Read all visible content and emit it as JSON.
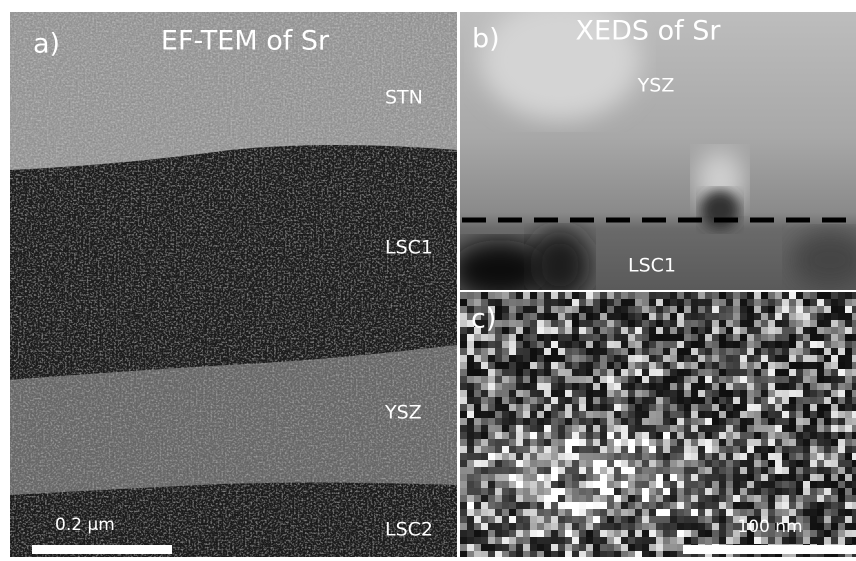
{
  "panels": [
    {
      "label": "a)",
      "title": "EF-TEM of Sr",
      "layers": [
        "STN",
        "LSC1",
        "YSZ",
        "LSC2"
      ],
      "scale_bar": "0.2 µm"
    },
    {
      "label": "b)",
      "title": "XEDS of Sr",
      "layers": [
        "YSZ",
        "LSC1"
      ]
    },
    {
      "label": "c)",
      "scale_bar": "100 nm"
    }
  ]
}
